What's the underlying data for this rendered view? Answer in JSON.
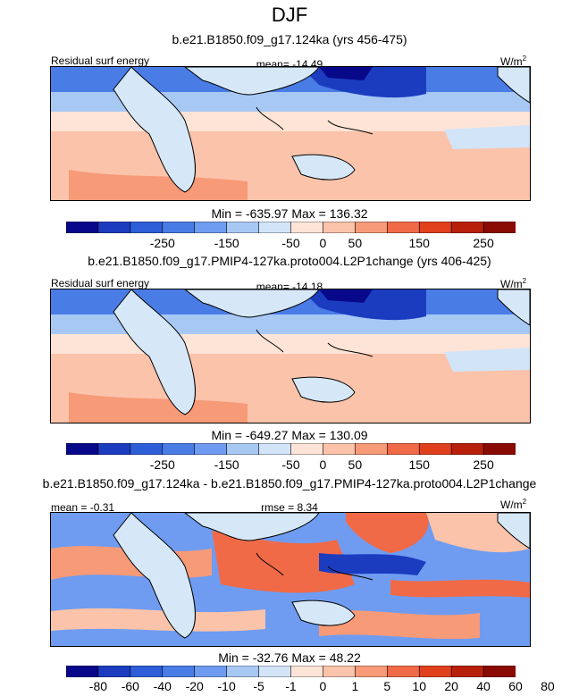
{
  "page_title": "DJF",
  "colors": {
    "scale": [
      "#08088a",
      "#1c3cc0",
      "#2e5ed8",
      "#4a7ce6",
      "#6f9cf0",
      "#a8c8f4",
      "#d2e4f8",
      "#fde4d6",
      "#fbc3aa",
      "#f79a78",
      "#f06a48",
      "#e0401c",
      "#b8200c",
      "#8a0a04"
    ],
    "land": "#d6e8f8",
    "coast": "#000000"
  },
  "chart_data": [
    {
      "type": "heatmap",
      "title": "b.e21.B1850.f09_g17.124ka (yrs 456-475)",
      "left_label": "Residual surf energy",
      "center_label": "mean= -14.49",
      "unit_base": "W/m",
      "unit_exp": "2",
      "min_max_text": "Min = -635.97 Max = 136.32",
      "colorbar_ticks": [
        "-250",
        "-150",
        "-50",
        "0",
        "50",
        "150",
        "250"
      ],
      "colorbar_tick_slots": [
        2,
        4,
        6,
        7,
        8,
        10,
        12
      ],
      "stats": {
        "mean": -14.49,
        "min": -635.97,
        "max": 136.32
      }
    },
    {
      "type": "heatmap",
      "title": "b.e21.B1850.f09_g17.PMIP4-127ka.proto004.L2P1change (yrs 406-425)",
      "left_label": "Residual surf energy",
      "center_label": "mean= -14.18",
      "unit_base": "W/m",
      "unit_exp": "2",
      "min_max_text": "Min = -649.27 Max = 130.09",
      "colorbar_ticks": [
        "-250",
        "-150",
        "-50",
        "0",
        "50",
        "150",
        "250"
      ],
      "colorbar_tick_slots": [
        2,
        4,
        6,
        7,
        8,
        10,
        12
      ],
      "stats": {
        "mean": -14.18,
        "min": -649.27,
        "max": 130.09
      }
    },
    {
      "type": "heatmap",
      "title": "b.e21.B1850.f09_g17.124ka - b.e21.B1850.f09_g17.PMIP4-127ka.proto004.L2P1change",
      "left_label": "mean =  -0.31",
      "center_label": "rmse =  8.34",
      "unit_base": "W/m",
      "unit_exp": "2",
      "min_max_text": "Min = -32.76 Max = 48.22",
      "colorbar_ticks": [
        "-80",
        "-60",
        "-40",
        "-20",
        "-10",
        "-5",
        "-1",
        "0",
        "1",
        "5",
        "10",
        "20",
        "40",
        "60",
        "80"
      ],
      "colorbar_tick_slots": [
        0,
        1,
        2,
        3,
        4,
        5,
        6,
        7,
        8,
        9,
        10,
        11,
        12,
        13,
        14
      ],
      "stats": {
        "mean": -0.31,
        "rmse": 8.34,
        "min": -32.76,
        "max": 48.22
      }
    }
  ]
}
